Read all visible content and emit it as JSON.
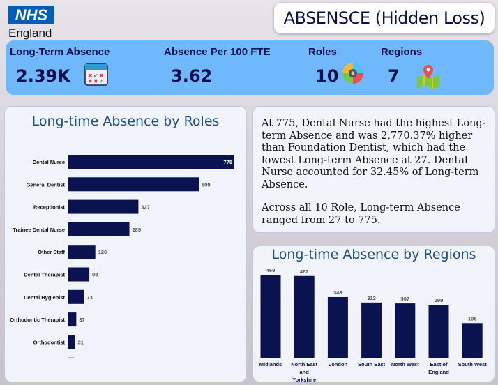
{
  "header": {
    "logo_text": "NHS",
    "logo_sub": "England",
    "title": "ABSENSCE (Hidden Loss)"
  },
  "kpis": [
    {
      "label": "Long-Term Absence",
      "value": "2.39K",
      "icon": "calendar-icon"
    },
    {
      "label": "Absence Per 100 FTE",
      "value": "3.62"
    },
    {
      "label": "Roles",
      "value": "10",
      "icon": "numbered-gear-icon"
    },
    {
      "label": "Regions",
      "value": "7",
      "icon": "map-pin-icon"
    }
  ],
  "narrative": {
    "p1": "At 775, Dental Nurse had the highest Long-term Absence and was 2,770.37% higher than Foundation Dentist, which had the lowest Long-term Absence at 27. Dental Nurse accounted for 32.45% of Long-term Absence.",
    "p2": "Across all 10 Role, Long-term Absence ranged from 27 to 775."
  },
  "colors": {
    "bar": "#0b1250",
    "kpi_bg": "#6fb8fb",
    "title": "#1b4f8a"
  },
  "chart_data": [
    {
      "type": "bar",
      "orientation": "horizontal",
      "title": "Long-time Absence by Roles",
      "categories": [
        "Dental Nurse",
        "General Dentist",
        "Receptionist",
        "Trainee Dental Nurse",
        "Other Staff",
        "Dental Therapist",
        "Dental Hygienist",
        "Orthodontic Therapist",
        "Orthodontist",
        "Foundation Dentist"
      ],
      "values": [
        775,
        609,
        327,
        285,
        126,
        98,
        73,
        37,
        31,
        27
      ]
    },
    {
      "type": "bar",
      "orientation": "vertical",
      "title": "Long-time Absence by Regions",
      "categories": [
        "Midlands",
        "North East and Yorkshire",
        "London",
        "South East",
        "North West",
        "East of England",
        "South West"
      ],
      "values": [
        469,
        462,
        343,
        312,
        307,
        299,
        196
      ]
    }
  ]
}
